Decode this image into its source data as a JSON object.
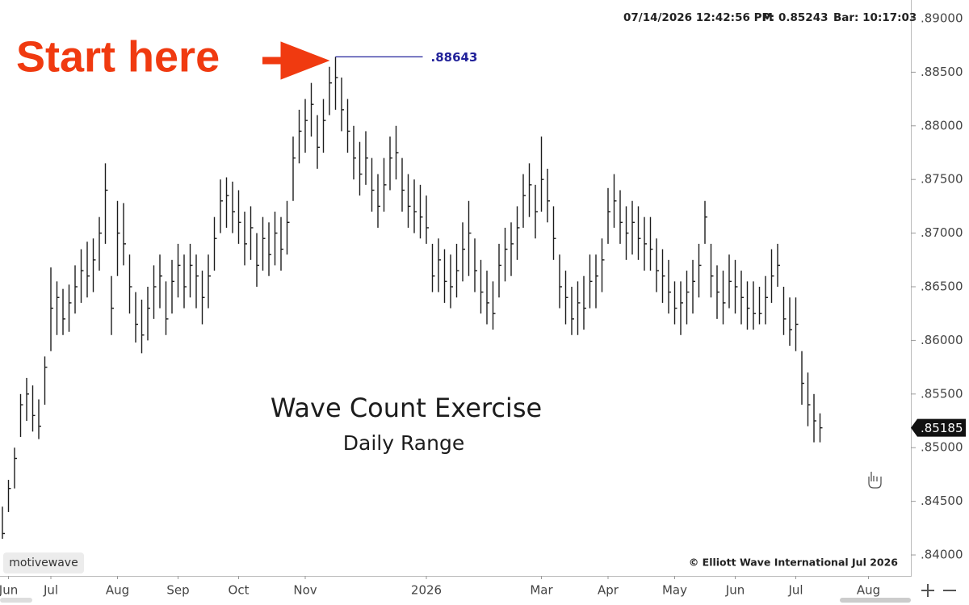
{
  "header": {
    "timestamp": "07/14/2026 12:42:56 PM",
    "price": "P: 0.85243",
    "bar": "Bar: 10:17:03"
  },
  "branding": {
    "platform": "motivewave",
    "copyright": "© Elliott Wave International Jul 2026"
  },
  "chart_data": {
    "type": "ohlc",
    "title": "Wave Count Exercise",
    "subtitle": "Daily Range",
    "annotation": "Start here",
    "peak_label": ".88643",
    "last_price_label": ".85185",
    "color": "#1c1c1c",
    "annotation_color": "#f03a10",
    "peak_label_color": "#22229a",
    "high": [
      0.8445,
      0.847,
      0.85,
      0.855,
      0.8565,
      0.8558,
      0.8545,
      0.8585,
      0.8668,
      0.8655,
      0.8648,
      0.8652,
      0.867,
      0.8685,
      0.8692,
      0.8695,
      0.8715,
      0.8765,
      0.866,
      0.873,
      0.8728,
      0.868,
      0.8645,
      0.8638,
      0.865,
      0.867,
      0.868,
      0.8655,
      0.8675,
      0.869,
      0.868,
      0.869,
      0.868,
      0.8665,
      0.868,
      0.8715,
      0.875,
      0.8752,
      0.8748,
      0.874,
      0.872,
      0.8725,
      0.87,
      0.8715,
      0.871,
      0.872,
      0.8715,
      0.873,
      0.879,
      0.8815,
      0.8825,
      0.884,
      0.881,
      0.8825,
      0.8855,
      0.88643,
      0.8845,
      0.8825,
      0.88,
      0.8785,
      0.8795,
      0.877,
      0.8755,
      0.877,
      0.879,
      0.88,
      0.877,
      0.8755,
      0.875,
      0.8745,
      0.8735,
      0.869,
      0.8695,
      0.8685,
      0.868,
      0.869,
      0.871,
      0.873,
      0.8695,
      0.8675,
      0.8665,
      0.8655,
      0.869,
      0.8705,
      0.871,
      0.8725,
      0.8755,
      0.8765,
      0.8745,
      0.879,
      0.876,
      0.8725,
      0.868,
      0.8665,
      0.865,
      0.8655,
      0.866,
      0.868,
      0.868,
      0.8695,
      0.8742,
      0.8755,
      0.874,
      0.8725,
      0.873,
      0.8725,
      0.8715,
      0.8715,
      0.8695,
      0.8685,
      0.8675,
      0.8655,
      0.8655,
      0.8665,
      0.8675,
      0.869,
      0.873,
      0.869,
      0.867,
      0.8665,
      0.868,
      0.8675,
      0.8665,
      0.8655,
      0.8655,
      0.865,
      0.866,
      0.8685,
      0.869,
      0.865,
      0.864,
      0.864,
      0.859,
      0.857,
      0.855,
      0.8532
    ],
    "low": [
      0.8415,
      0.844,
      0.8462,
      0.851,
      0.8525,
      0.8515,
      0.8508,
      0.854,
      0.859,
      0.8605,
      0.8605,
      0.8608,
      0.8625,
      0.8635,
      0.864,
      0.8645,
      0.8665,
      0.869,
      0.8605,
      0.866,
      0.867,
      0.8625,
      0.8598,
      0.8588,
      0.86,
      0.862,
      0.863,
      0.8605,
      0.8625,
      0.864,
      0.863,
      0.864,
      0.863,
      0.8615,
      0.863,
      0.8665,
      0.87,
      0.8705,
      0.87,
      0.869,
      0.867,
      0.8675,
      0.865,
      0.8665,
      0.866,
      0.867,
      0.8665,
      0.868,
      0.873,
      0.8765,
      0.8775,
      0.879,
      0.876,
      0.8775,
      0.881,
      0.8815,
      0.8795,
      0.8775,
      0.875,
      0.8735,
      0.8745,
      0.872,
      0.8705,
      0.872,
      0.874,
      0.875,
      0.872,
      0.8705,
      0.87,
      0.8695,
      0.869,
      0.8645,
      0.8645,
      0.8635,
      0.863,
      0.864,
      0.8655,
      0.866,
      0.8645,
      0.8625,
      0.8615,
      0.861,
      0.864,
      0.8655,
      0.866,
      0.8675,
      0.8705,
      0.8715,
      0.8695,
      0.872,
      0.871,
      0.8675,
      0.863,
      0.8615,
      0.8605,
      0.8605,
      0.861,
      0.863,
      0.863,
      0.8645,
      0.869,
      0.8705,
      0.869,
      0.8675,
      0.868,
      0.8675,
      0.8665,
      0.8665,
      0.8645,
      0.8635,
      0.8625,
      0.8615,
      0.8605,
      0.8615,
      0.8625,
      0.864,
      0.869,
      0.864,
      0.862,
      0.8615,
      0.863,
      0.8625,
      0.8615,
      0.861,
      0.861,
      0.8615,
      0.8615,
      0.8635,
      0.865,
      0.8605,
      0.8595,
      0.859,
      0.854,
      0.852,
      0.8505,
      0.8505
    ],
    "close": [
      0.842,
      0.8462,
      0.849,
      0.854,
      0.855,
      0.853,
      0.852,
      0.8575,
      0.863,
      0.864,
      0.862,
      0.8635,
      0.865,
      0.8665,
      0.866,
      0.8675,
      0.87,
      0.874,
      0.863,
      0.87,
      0.869,
      0.865,
      0.8615,
      0.8605,
      0.863,
      0.865,
      0.866,
      0.862,
      0.8655,
      0.867,
      0.865,
      0.867,
      0.866,
      0.864,
      0.866,
      0.8695,
      0.873,
      0.8735,
      0.872,
      0.871,
      0.869,
      0.8705,
      0.867,
      0.8695,
      0.868,
      0.87,
      0.8685,
      0.871,
      0.877,
      0.8795,
      0.8805,
      0.882,
      0.878,
      0.8805,
      0.884,
      0.8845,
      0.8815,
      0.8795,
      0.877,
      0.8755,
      0.877,
      0.874,
      0.8725,
      0.8745,
      0.877,
      0.8775,
      0.874,
      0.8725,
      0.872,
      0.8715,
      0.8705,
      0.866,
      0.8675,
      0.8655,
      0.865,
      0.8665,
      0.8685,
      0.87,
      0.8665,
      0.8645,
      0.8635,
      0.8625,
      0.867,
      0.8685,
      0.869,
      0.8705,
      0.8735,
      0.8745,
      0.872,
      0.875,
      0.873,
      0.8695,
      0.865,
      0.864,
      0.862,
      0.8635,
      0.863,
      0.8655,
      0.866,
      0.8675,
      0.872,
      0.873,
      0.871,
      0.87,
      0.871,
      0.8695,
      0.869,
      0.8685,
      0.8665,
      0.866,
      0.8645,
      0.863,
      0.8635,
      0.8645,
      0.8655,
      0.867,
      0.8715,
      0.866,
      0.8645,
      0.8635,
      0.8655,
      0.865,
      0.864,
      0.863,
      0.8625,
      0.8625,
      0.864,
      0.866,
      0.867,
      0.862,
      0.861,
      0.8615,
      0.856,
      0.854,
      0.8525,
      0.85185
    ],
    "xlim": [
      -0.4,
      150
    ],
    "xticks": [
      {
        "value": 1,
        "label": "Jun"
      },
      {
        "value": 8,
        "label": "Jul"
      },
      {
        "value": 19,
        "label": "Aug"
      },
      {
        "value": 29,
        "label": "Sep"
      },
      {
        "value": 39,
        "label": "Oct"
      },
      {
        "value": 50,
        "label": "Nov"
      },
      {
        "value": 70,
        "label": "2026"
      },
      {
        "value": 89,
        "label": "Mar"
      },
      {
        "value": 100,
        "label": "Apr"
      },
      {
        "value": 111,
        "label": "May"
      },
      {
        "value": 121,
        "label": "Jun"
      },
      {
        "value": 131,
        "label": "Jul"
      },
      {
        "value": 143,
        "label": "Aug"
      }
    ],
    "ylim": [
      0.83812,
      0.89173
    ],
    "yticks": [
      {
        "value": 0.84,
        "label": ".84000"
      },
      {
        "value": 0.845,
        "label": ".84500"
      },
      {
        "value": 0.85,
        "label": ".85000"
      },
      {
        "value": 0.855,
        "label": ".85500"
      },
      {
        "value": 0.86,
        "label": ".86000"
      },
      {
        "value": 0.865,
        "label": ".86500"
      },
      {
        "value": 0.87,
        "label": ".87000"
      },
      {
        "value": 0.875,
        "label": ".87500"
      },
      {
        "value": 0.88,
        "label": ".88000"
      },
      {
        "value": 0.885,
        "label": ".88500"
      },
      {
        "value": 0.89,
        "label": ".89000"
      }
    ]
  }
}
